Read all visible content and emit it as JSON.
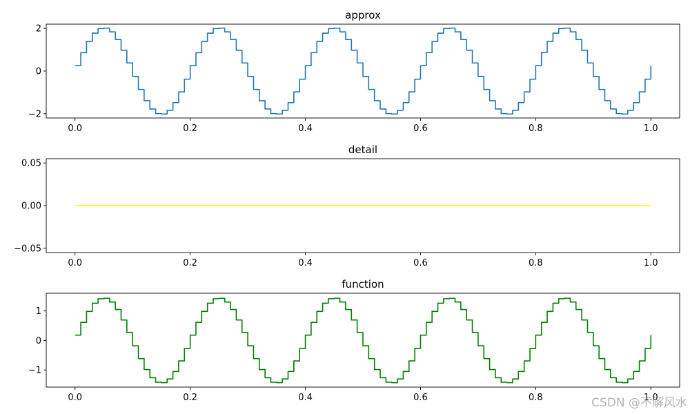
{
  "chart_data": [
    {
      "type": "line",
      "title": "approx",
      "xlim": [
        -0.05,
        1.05
      ],
      "ylim": [
        -2.2,
        2.2
      ],
      "xticks": [
        0.0,
        0.2,
        0.4,
        0.6,
        0.8,
        1.0
      ],
      "xtick_labels": [
        "0.0",
        "0.2",
        "0.4",
        "0.6",
        "0.8",
        "1.0"
      ],
      "yticks": [
        2,
        0,
        -2
      ],
      "ytick_labels": [
        "2",
        "0",
        "−2"
      ],
      "grid": false,
      "series": [
        {
          "color": "#1f77b4",
          "style": "step",
          "function": "A*sin(2*pi*f*x) sampled with step ~0.01",
          "amplitude": 2.03,
          "frequency": 5,
          "step": 0.01,
          "x_range": [
            0.0,
            1.0
          ],
          "x": [
            0.0,
            0.025,
            0.05,
            0.075,
            0.1,
            0.125,
            0.15,
            0.175,
            0.2,
            0.25,
            0.3,
            0.35,
            0.4,
            0.45,
            0.5,
            0.55,
            0.6,
            0.65,
            0.7,
            0.75,
            0.8,
            0.85,
            0.9,
            0.95,
            1.0
          ],
          "y": [
            0.25,
            1.5,
            2.03,
            1.5,
            0.0,
            -1.5,
            -2.03,
            -1.5,
            0.0,
            2.03,
            0.0,
            -2.03,
            0.0,
            2.03,
            0.0,
            -2.03,
            0.0,
            2.03,
            0.0,
            -2.03,
            0.0,
            2.03,
            0.0,
            -2.03,
            -0.3
          ]
        }
      ]
    },
    {
      "type": "line",
      "title": "detail",
      "xlim": [
        -0.05,
        1.05
      ],
      "ylim": [
        -0.055,
        0.055
      ],
      "xticks": [
        0.0,
        0.2,
        0.4,
        0.6,
        0.8,
        1.0
      ],
      "xtick_labels": [
        "0.0",
        "0.2",
        "0.4",
        "0.6",
        "0.8",
        "1.0"
      ],
      "yticks": [
        0.05,
        0.0,
        -0.05
      ],
      "ytick_labels": [
        "0.05",
        "0.00",
        "−0.05"
      ],
      "grid": false,
      "series": [
        {
          "color": "#ffff00",
          "style": "constant",
          "x": [
            0.0,
            1.0
          ],
          "y": [
            0.0,
            0.0
          ]
        }
      ]
    },
    {
      "type": "line",
      "title": "function",
      "xlim": [
        -0.05,
        1.05
      ],
      "ylim": [
        -1.58,
        1.6
      ],
      "xticks": [
        0.0,
        0.2,
        0.4,
        0.6,
        0.8,
        1.0
      ],
      "xtick_labels": [
        "0.0",
        "0.2",
        "0.4",
        "0.6",
        "0.8",
        "1.0"
      ],
      "yticks": [
        1,
        0,
        -1
      ],
      "ytick_labels": [
        "1",
        "0",
        "−1"
      ],
      "grid": false,
      "series": [
        {
          "color": "#008000",
          "style": "step",
          "function": "A*sin(2*pi*f*x) sampled with step ~0.01",
          "amplitude": 1.44,
          "frequency": 5,
          "step": 0.01,
          "x_range": [
            0.0,
            1.0
          ],
          "x": [
            0.0,
            0.025,
            0.05,
            0.075,
            0.1,
            0.125,
            0.15,
            0.175,
            0.2,
            0.25,
            0.3,
            0.35,
            0.4,
            0.45,
            0.5,
            0.55,
            0.6,
            0.65,
            0.7,
            0.75,
            0.8,
            0.85,
            0.9,
            0.95,
            1.0
          ],
          "y": [
            0.18,
            1.05,
            1.44,
            1.05,
            0.0,
            -1.05,
            -1.44,
            -1.05,
            0.0,
            1.44,
            0.0,
            -1.44,
            0.0,
            1.44,
            0.0,
            -1.44,
            0.0,
            1.44,
            0.0,
            -1.44,
            0.0,
            1.44,
            0.0,
            -1.44,
            -0.2
          ]
        }
      ]
    }
  ],
  "watermark": "CSDN @不解风水"
}
